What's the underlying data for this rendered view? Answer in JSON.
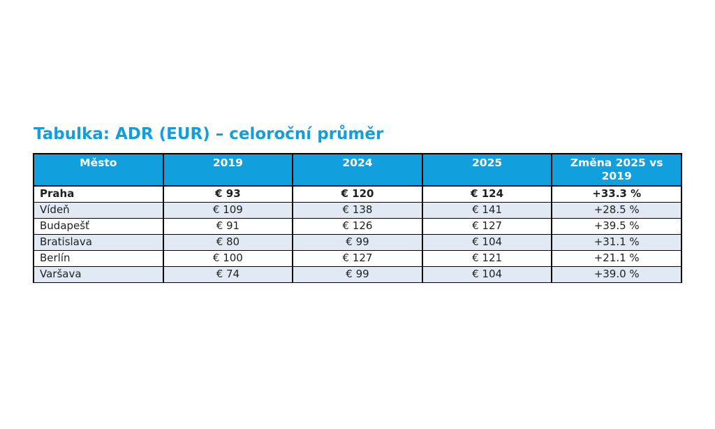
{
  "title": "Tabulka: ADR (EUR) – celoroční průměr",
  "colors": {
    "page_bg": "#ffffff",
    "title_text": "#149ED9",
    "header_bg": "#129FDD",
    "header_text": "#ffffff",
    "stripe_bg": "#E1EAF4",
    "row_bg": "#ffffff",
    "border": "#000000",
    "cell_text": "#1f1f1f"
  },
  "chart_data": {
    "type": "table",
    "title": "Tabulka: ADR (EUR) – celoroční průměr",
    "columns": [
      "Město",
      "2019",
      "2024",
      "2025",
      "Změna 2025 vs 2019"
    ],
    "rows": [
      {
        "city": "Praha",
        "adr_2019_eur": 93,
        "adr_2024_eur": 120,
        "adr_2025_eur": 124,
        "change_2025_vs_2019_pct": 33.3
      },
      {
        "city": "Vídeň",
        "adr_2019_eur": 109,
        "adr_2024_eur": 138,
        "adr_2025_eur": 141,
        "change_2025_vs_2019_pct": 28.5
      },
      {
        "city": "Budapešť",
        "adr_2019_eur": 91,
        "adr_2024_eur": 126,
        "adr_2025_eur": 127,
        "change_2025_vs_2019_pct": 39.5
      },
      {
        "city": "Bratislava",
        "adr_2019_eur": 80,
        "adr_2024_eur": 99,
        "adr_2025_eur": 104,
        "change_2025_vs_2019_pct": 31.1
      },
      {
        "city": "Berlín",
        "adr_2019_eur": 100,
        "adr_2024_eur": 127,
        "adr_2025_eur": 121,
        "change_2025_vs_2019_pct": 21.1
      },
      {
        "city": "Varšava",
        "adr_2019_eur": 74,
        "adr_2024_eur": 99,
        "adr_2025_eur": 104,
        "change_2025_vs_2019_pct": 39.0
      }
    ],
    "display_rows": [
      [
        "Praha",
        "€ 93",
        "€ 120",
        "€ 124",
        "+33.3 %"
      ],
      [
        "Vídeň",
        "€ 109",
        "€ 138",
        "€ 141",
        "+28.5 %"
      ],
      [
        "Budapešť",
        "€ 91",
        "€ 126",
        "€ 127",
        "+39.5 %"
      ],
      [
        "Bratislava",
        "€ 80",
        "€ 99",
        "€ 104",
        "+31.1 %"
      ],
      [
        "Berlín",
        "€ 100",
        "€ 127",
        "€ 121",
        "+21.1 %"
      ],
      [
        "Varšava",
        "€ 74",
        "€ 99",
        "€ 104",
        "+39.0 %"
      ]
    ],
    "emphasized_row": "Praha",
    "layout": {
      "striped": true,
      "stripe_rows": [
        "Vídeň",
        "Bratislava",
        "Varšava"
      ],
      "header_position": "top",
      "city_column_align": "left",
      "value_columns_align": "center"
    }
  }
}
